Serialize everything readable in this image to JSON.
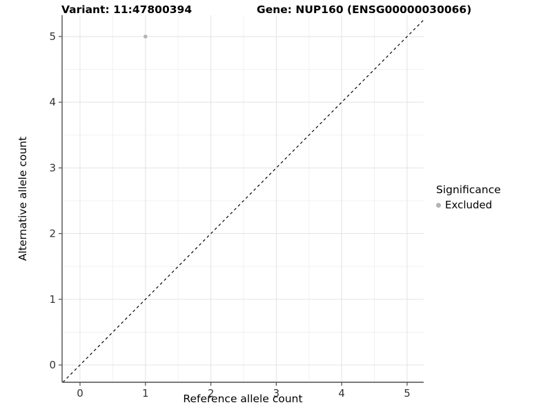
{
  "chart_data": {
    "type": "scatter",
    "title_left": "Variant: 11:47800394",
    "title_right": "Gene: NUP160 (ENSG00000030066)",
    "xlabel": "Reference allele count",
    "ylabel": "Alternative allele count",
    "x_ticks": [
      0,
      1,
      2,
      3,
      4,
      5
    ],
    "y_ticks": [
      0,
      1,
      2,
      3,
      4,
      5
    ],
    "xlim": [
      -0.274,
      5.253
    ],
    "ylim": [
      -0.263,
      5.325
    ],
    "grid": {
      "major_color": "#e3e3e3",
      "minor_color": "#f1f1f1",
      "minor_step": 0.5
    },
    "axis_color": "#4d4d4d",
    "tick_label_color": "#333333",
    "reference_line": {
      "slope": 1,
      "intercept": 0,
      "style": "dashed",
      "color": "#000000"
    },
    "series": [
      {
        "name": "Excluded",
        "color": "#b3b3b3",
        "points": [
          {
            "x": 1,
            "y": 5
          }
        ]
      }
    ],
    "legend": {
      "title": "Significance",
      "position": "right",
      "items": [
        {
          "label": "Excluded",
          "color": "#b3b3b3"
        }
      ]
    }
  }
}
